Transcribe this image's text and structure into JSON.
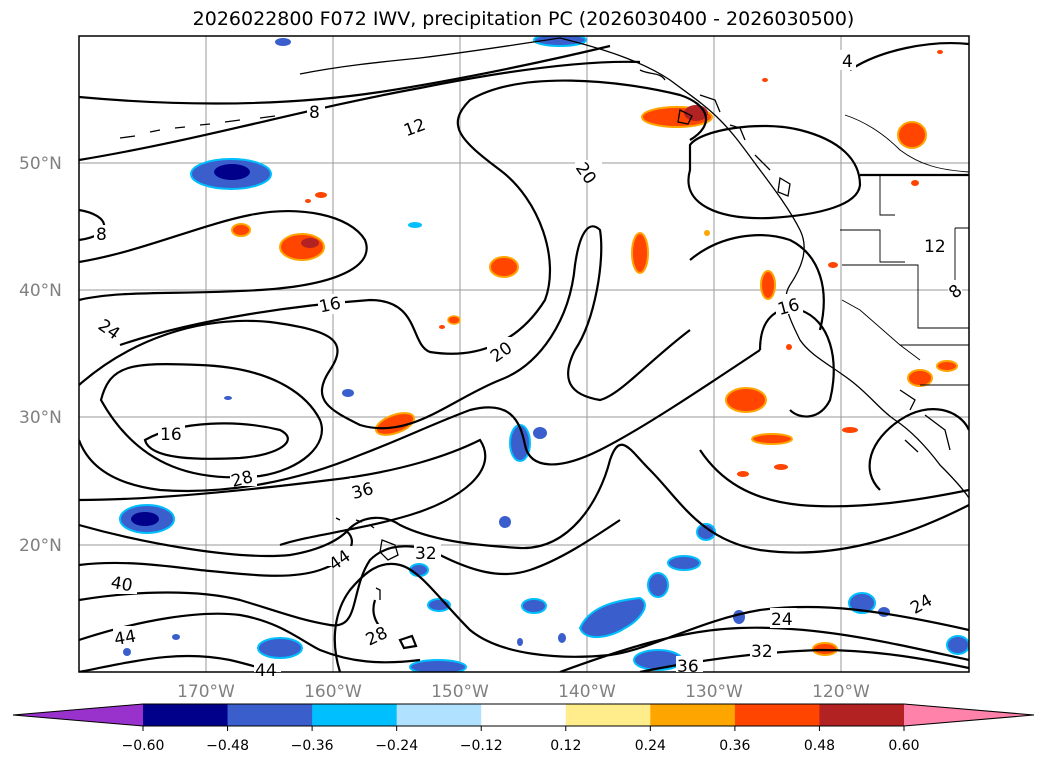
{
  "title": "2026022800 F072 IWV, precipitation PC (2026030400 - 2026030500)",
  "lat_labels": [
    "50°N",
    "40°N",
    "30°N",
    "20°N"
  ],
  "lon_labels": [
    "170°W",
    "160°W",
    "150°W",
    "140°W",
    "130°W",
    "120°W"
  ],
  "colorbar": {
    "ticks": [
      "−0.60",
      "−0.48",
      "−0.36",
      "−0.24",
      "−0.12",
      "0.12",
      "0.24",
      "0.36",
      "0.48",
      "0.60"
    ],
    "colors": [
      "#9932cc",
      "#00008b",
      "#3a5fcd",
      "#00bfff",
      "#b0e2ff",
      "#ffffff",
      "#ffec8b",
      "#ffa500",
      "#ff4500",
      "#b22222",
      "#ff82ab"
    ]
  },
  "contour_labels": [
    "4",
    "8",
    "12",
    "20",
    "8",
    "16",
    "24",
    "20",
    "16",
    "28",
    "36",
    "44",
    "32",
    "40",
    "44",
    "28",
    "44",
    "24",
    "32",
    "36",
    "24",
    "12",
    "16",
    "8"
  ],
  "colors": {
    "contour": "#000000",
    "grid": "#9a9a9a",
    "axis_label": "#808080"
  }
}
